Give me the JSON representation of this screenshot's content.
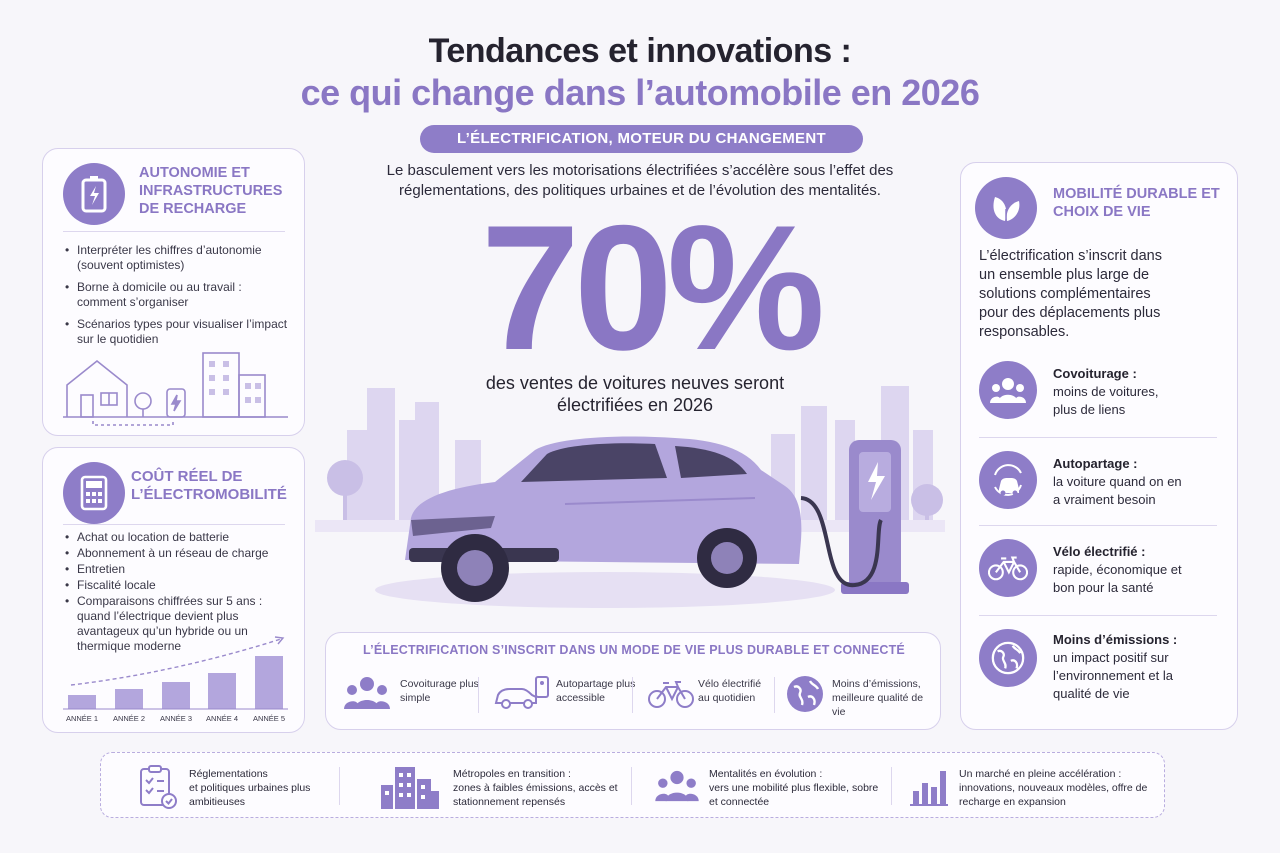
{
  "header": {
    "title_line1": "Tendances et innovations :",
    "title_line2": "ce qui change dans l’automobile en 2026",
    "banner": "L’électrification, moteur du changement"
  },
  "left_top": {
    "title": "Autonomie et infrastructures de recharge",
    "icon": "battery-icon",
    "bullets": [
      "Interpréter les chiffres d’autonomie (souvent optimistes)",
      "Borne à domicile ou au travail : comment s’organiser",
      "Scénarios types pour visualiser l’impact sur le quotidien"
    ]
  },
  "left_bottom": {
    "title": "Coût réel de l’électromobilité",
    "icon": "calculator-icon",
    "bullets": [
      "Achat ou location de batterie",
      "Abonnement à un réseau de charge",
      "Entretien",
      "Fiscalité locale",
      "Comparaisons chiffrées sur 5 ans : quand l’électrique devient plus avantageux qu’un hybride ou un thermique moderne"
    ],
    "chart_labels": [
      "Année 1",
      "Année 2",
      "Année 3",
      "Année 4",
      "Année 5"
    ]
  },
  "center": {
    "intro": "Le basculement vers les motorisations électrifiées s’accélère sous l’effet des réglementations, des politiques urbaines et de l’évolution des mentalités.",
    "big_stat": "70%",
    "big_stat_caption": "des ventes de voitures neuves seront électrifiées en 2026"
  },
  "middle_box": {
    "title": "L’électrification s’inscrit dans un mode de vie plus durable et connecté",
    "items": [
      {
        "label": "Covoiturage plus simple",
        "icon": "people-icon"
      },
      {
        "label": "Autopartage plus accessible",
        "icon": "shared-car-icon"
      },
      {
        "label": "Vélo électrifié au quotidien",
        "icon": "bicycle-icon"
      },
      {
        "label": "Moins d’émissions, meilleure qualité de vie",
        "icon": "globe-icon"
      }
    ]
  },
  "right": {
    "title": "Mobilité durable et choix de vie",
    "icon": "leaf-icon",
    "intro": "L’électrification s’inscrit dans un ensemble plus large de solutions complémentaires pour des déplacements plus responsables.",
    "items": [
      {
        "title": "Covoiturage :",
        "text": "moins de voitures, plus de liens",
        "icon": "people-icon"
      },
      {
        "title": "Autopartage :",
        "text": "la voiture quand on en a vraiment besoin",
        "icon": "car-share-icon"
      },
      {
        "title": "Vélo électrifié :",
        "text": "rapide, économique et bon pour la santé",
        "icon": "bicycle-icon"
      },
      {
        "title": "Moins d’émissions :",
        "text": "un impact positif sur l’environnement et la qualité de vie",
        "icon": "globe-icon"
      }
    ]
  },
  "bottom": {
    "items": [
      {
        "title": "Réglementations",
        "text": "et politiques urbaines plus ambitieuses",
        "icon": "checklist-icon"
      },
      {
        "title": "Métropoles en transition :",
        "text": "zones à faibles émissions, accès et stationnement repensés",
        "icon": "buildings-icon"
      },
      {
        "title": "Mentalités en évolution :",
        "text": "vers une mobilité plus flexible, sobre et connectée",
        "icon": "group-icon"
      },
      {
        "title": "Un marché en pleine accélération :",
        "text": "innovations, nouveaux modèles, offre de recharge en expansion",
        "icon": "bar-chart-icon"
      }
    ]
  },
  "colors": {
    "accent": "#8a77c4",
    "accent_light": "#c9bfe6",
    "text": "#25232f"
  }
}
